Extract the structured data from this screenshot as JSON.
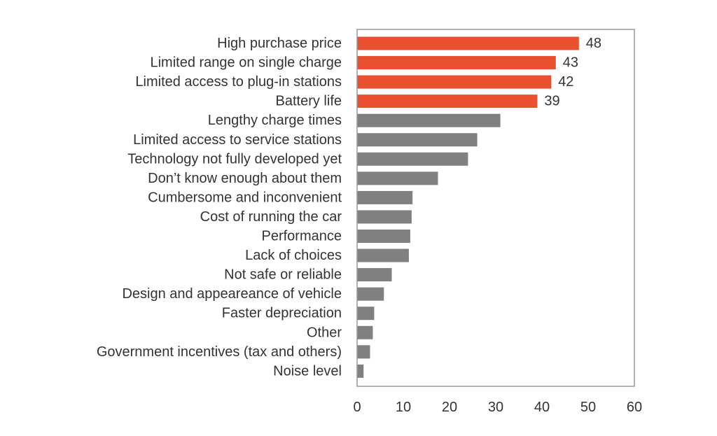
{
  "chart_data": {
    "type": "bar",
    "orientation": "horizontal",
    "categories": [
      "High purchase price",
      "Limited range on single charge",
      "Limited access to plug-in stations",
      "Battery life",
      "Lengthy charge times",
      "Limited access to service stations",
      "Technology not fully developed yet",
      "Don’t know enough about them",
      "Cumbersome and inconvenient",
      "Cost of running the car",
      "Performance",
      "Lack of choices",
      "Not safe or reliable",
      "Design and appeareance of vehicle",
      "Faster depreciation",
      "Other",
      "Government incentives (tax and others)",
      "Noise level"
    ],
    "values": [
      48,
      43,
      42,
      39,
      31,
      26,
      24,
      17.5,
      12,
      11.8,
      11.5,
      11.2,
      7.5,
      5.8,
      3.7,
      3.4,
      2.8,
      1.4
    ],
    "value_labels": [
      "48",
      "43",
      "42",
      "39",
      "",
      "",
      "",
      "",
      "",
      "",
      "",
      "",
      "",
      "",
      "",
      "",
      "",
      ""
    ],
    "highlight_count": 4,
    "colors": {
      "highlight": "#e8502f",
      "default": "#808080",
      "axis": "#999999",
      "text": "#333333"
    },
    "xlim": [
      0,
      60
    ],
    "xticks": [
      "0",
      "10",
      "20",
      "30",
      "40",
      "50",
      "60"
    ],
    "title": "",
    "xlabel": "",
    "ylabel": "",
    "grid": false,
    "legend": "none"
  }
}
